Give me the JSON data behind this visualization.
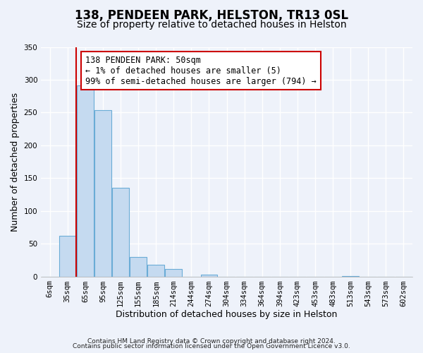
{
  "title": "138, PENDEEN PARK, HELSTON, TR13 0SL",
  "subtitle": "Size of property relative to detached houses in Helston",
  "xlabel": "Distribution of detached houses by size in Helston",
  "ylabel": "Number of detached properties",
  "bar_labels": [
    "6sqm",
    "35sqm",
    "65sqm",
    "95sqm",
    "125sqm",
    "155sqm",
    "185sqm",
    "214sqm",
    "244sqm",
    "274sqm",
    "304sqm",
    "334sqm",
    "364sqm",
    "394sqm",
    "423sqm",
    "453sqm",
    "483sqm",
    "513sqm",
    "543sqm",
    "573sqm",
    "602sqm"
  ],
  "bar_values": [
    0,
    62,
    291,
    254,
    135,
    30,
    18,
    11,
    0,
    3,
    0,
    0,
    0,
    0,
    0,
    0,
    0,
    1,
    0,
    0,
    0
  ],
  "bar_color": "#c5daf0",
  "bar_edge_color": "#6aacd6",
  "ylim": [
    0,
    350
  ],
  "yticks": [
    0,
    50,
    100,
    150,
    200,
    250,
    300,
    350
  ],
  "annotation_box_text": "138 PENDEEN PARK: 50sqm\n← 1% of detached houses are smaller (5)\n99% of semi-detached houses are larger (794) →",
  "annotation_box_color": "#ffffff",
  "annotation_box_edge_color": "#cc0000",
  "vline_color": "#cc0000",
  "footer_line1": "Contains HM Land Registry data © Crown copyright and database right 2024.",
  "footer_line2": "Contains public sector information licensed under the Open Government Licence v3.0.",
  "background_color": "#eef2fa",
  "grid_color": "#ffffff",
  "title_fontsize": 12,
  "subtitle_fontsize": 10,
  "axis_label_fontsize": 9,
  "tick_fontsize": 7.5,
  "annotation_fontsize": 8.5,
  "footer_fontsize": 6.5
}
